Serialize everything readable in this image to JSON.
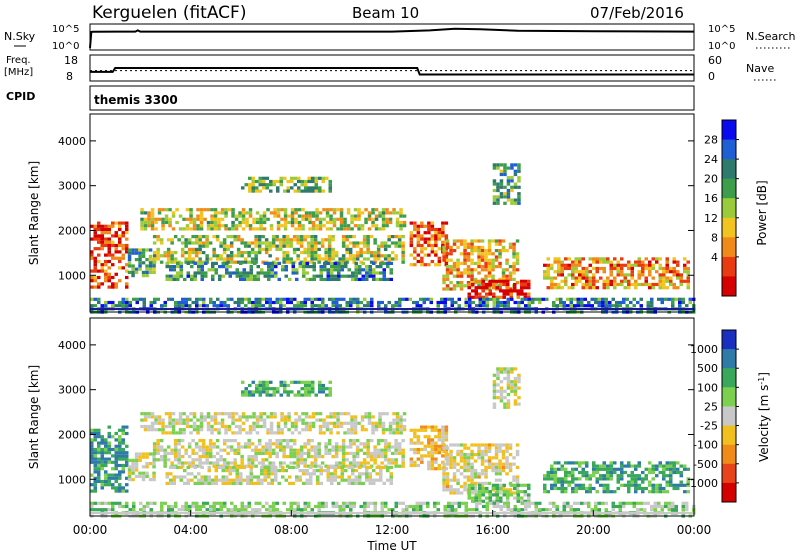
{
  "header": {
    "station": "Kerguelen (fitACF)",
    "beam": "Beam 10",
    "date": "07/Feb/2016"
  },
  "side_labels": {
    "nsky": "N.Sky",
    "nsearch": "N.Search",
    "freq_line1": "Freq.",
    "freq_line2": "[MHz]",
    "nave": "Nave",
    "cpid": "CPID"
  },
  "cpid_text": "themis 3300",
  "chart_data": [
    {
      "type": "line",
      "name": "noise",
      "ylabels_left": [
        "10^5",
        "10^0"
      ],
      "ylabels_right": [
        "10^5",
        "10^0"
      ],
      "x": [
        0.0,
        0.05,
        0.1,
        1.0,
        1.8,
        1.9,
        2.0,
        6.0,
        12.0,
        13.5,
        14.5,
        15.5,
        17.0,
        20.0,
        24.0
      ],
      "y_log10": [
        0.0,
        4.0,
        4.05,
        4.1,
        4.1,
        4.4,
        4.1,
        4.1,
        4.1,
        4.4,
        4.8,
        4.7,
        4.3,
        4.2,
        4.1
      ]
    },
    {
      "type": "line",
      "name": "frequency",
      "left_ticks": [
        18,
        8
      ],
      "right_ticks": [
        60,
        0
      ],
      "x": [
        0.0,
        0.9,
        1.0,
        13.0,
        13.1,
        24.0
      ],
      "freq_mhz": [
        11.5,
        11.5,
        13.0,
        13.0,
        10.5,
        10.5
      ],
      "nave_level": 24
    },
    {
      "type": "heatmap",
      "name": "power",
      "ylabel": "Slant Range [km]",
      "yticks": [
        1000,
        2000,
        3000,
        4000
      ],
      "ylim": [
        180,
        4600
      ],
      "xlim": [
        0,
        24
      ],
      "colorbar": {
        "label": "Power [dB]",
        "ticks": [
          "4",
          "8",
          "12",
          "16",
          "20",
          "24",
          "28"
        ],
        "colors": [
          "#0a0aee",
          "#1f5fd6",
          "#2f7a6c",
          "#3c9e4a",
          "#9acb3a",
          "#f2c41f",
          "#f08a18",
          "#e83b12",
          "#d60000"
        ]
      },
      "echo_bands": [
        {
          "x": [
            0.0,
            1.5
          ],
          "r": [
            700,
            2200
          ],
          "level": 0.85
        },
        {
          "x": [
            1.5,
            2.5
          ],
          "r": [
            1000,
            1600
          ],
          "level": 0.35
        },
        {
          "x": [
            2.0,
            12.5
          ],
          "r": [
            2000,
            2500
          ],
          "level": 0.55
        },
        {
          "x": [
            2.5,
            12.5
          ],
          "r": [
            1300,
            1900
          ],
          "level": 0.5
        },
        {
          "x": [
            3.0,
            12.0
          ],
          "r": [
            900,
            1300
          ],
          "level": 0.3
        },
        {
          "x": [
            6.0,
            9.5
          ],
          "r": [
            2900,
            3200
          ],
          "level": 0.45
        },
        {
          "x": [
            12.7,
            14.2
          ],
          "r": [
            1200,
            2200
          ],
          "level": 0.8
        },
        {
          "x": [
            14.0,
            17.0
          ],
          "r": [
            700,
            1800
          ],
          "level": 0.65
        },
        {
          "x": [
            15.0,
            17.5
          ],
          "r": [
            500,
            900
          ],
          "level": 0.9
        },
        {
          "x": [
            18.0,
            23.8
          ],
          "r": [
            700,
            1400
          ],
          "level": 0.7
        },
        {
          "x": [
            16.0,
            17.0
          ],
          "r": [
            2600,
            3500
          ],
          "level": 0.35
        },
        {
          "x": [
            0.0,
            24.0
          ],
          "r": [
            180,
            500
          ],
          "level": 0.25
        }
      ]
    },
    {
      "type": "heatmap",
      "name": "velocity",
      "ylabel": "Slant Range [km]",
      "xlabel": "Time UT",
      "xticks": [
        "00:00",
        "04:00",
        "08:00",
        "12:00",
        "16:00",
        "20:00",
        "00:00"
      ],
      "yticks": [
        1000,
        2000,
        3000,
        4000
      ],
      "ylim": [
        180,
        4600
      ],
      "xlim": [
        0,
        24
      ],
      "colorbar": {
        "label_main": "Velocity [m s",
        "label_sup": "-1",
        "label_close": "]",
        "ticks": [
          "1000",
          "500",
          "100",
          "25",
          "-25",
          "-100",
          "-500",
          "-1000"
        ],
        "colors": [
          "#1a2fbf",
          "#2e7ba8",
          "#3aa85a",
          "#7cd050",
          "#c8c8c8",
          "#f2c01e",
          "#f08a18",
          "#e8431a",
          "#d40000"
        ]
      },
      "echo_bands": [
        {
          "x": [
            0.0,
            1.5
          ],
          "r": [
            700,
            2200
          ],
          "level": 0.25
        },
        {
          "x": [
            1.5,
            2.5
          ],
          "r": [
            1000,
            1600
          ],
          "level": 0.5
        },
        {
          "x": [
            2.0,
            12.5
          ],
          "r": [
            2000,
            2500
          ],
          "level": 0.5
        },
        {
          "x": [
            2.5,
            12.5
          ],
          "r": [
            1300,
            1900
          ],
          "level": 0.5
        },
        {
          "x": [
            3.0,
            12.0
          ],
          "r": [
            900,
            1300
          ],
          "level": 0.5
        },
        {
          "x": [
            6.0,
            9.5
          ],
          "r": [
            2900,
            3200
          ],
          "level": 0.3
        },
        {
          "x": [
            12.7,
            14.2
          ],
          "r": [
            1200,
            2200
          ],
          "level": 0.62
        },
        {
          "x": [
            14.0,
            17.0
          ],
          "r": [
            700,
            1800
          ],
          "level": 0.55
        },
        {
          "x": [
            15.0,
            17.5
          ],
          "r": [
            500,
            900
          ],
          "level": 0.35
        },
        {
          "x": [
            18.0,
            23.8
          ],
          "r": [
            700,
            1400
          ],
          "level": 0.28
        },
        {
          "x": [
            16.0,
            17.0
          ],
          "r": [
            2600,
            3500
          ],
          "level": 0.5
        },
        {
          "x": [
            0.0,
            24.0
          ],
          "r": [
            180,
            500
          ],
          "level": 0.4
        }
      ]
    }
  ]
}
